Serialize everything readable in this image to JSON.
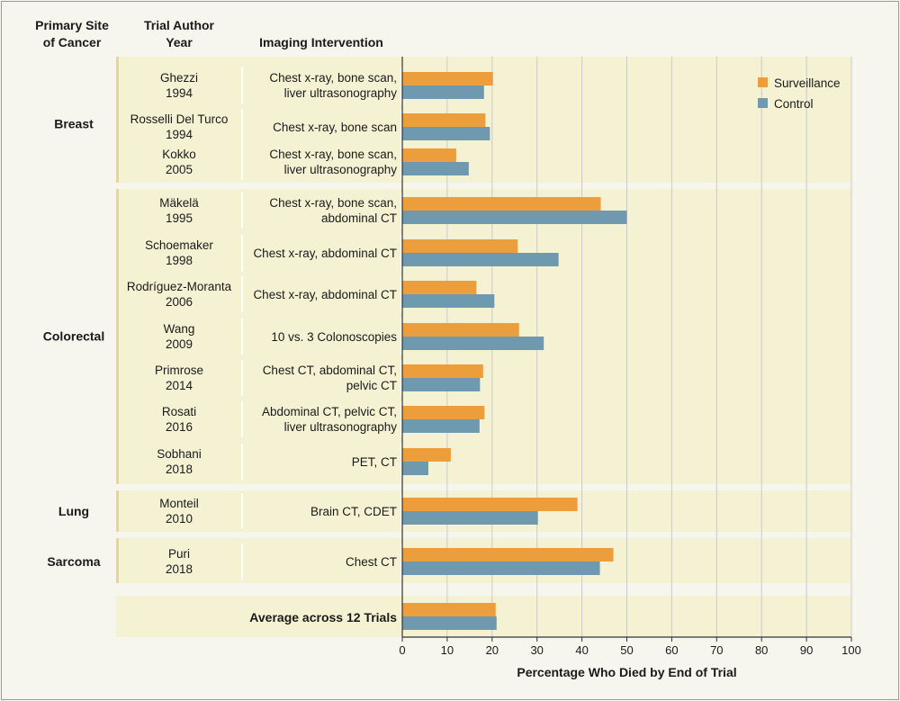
{
  "headers": {
    "site": [
      "Primary Site",
      "of Cancer"
    ],
    "author": [
      "Trial Author",
      "Year"
    ],
    "imaging": "Imaging Intervention"
  },
  "colors": {
    "surveillance": "#ed9e3c",
    "control": "#6f99ae",
    "band": "#f5f2d4",
    "band_divider": "#e3d98f",
    "cell_separator": "#ffffff",
    "grid": "#c9c9c9"
  },
  "groups": [
    {
      "site": "Breast",
      "trials": [
        0,
        1,
        2
      ]
    },
    {
      "site": "Colorectal",
      "trials": [
        3,
        4,
        5,
        6,
        7,
        8,
        9
      ]
    },
    {
      "site": "Lung",
      "trials": [
        10
      ]
    },
    {
      "site": "Sarcoma",
      "trials": [
        11
      ]
    }
  ],
  "average_label": "Average across 12 Trials",
  "chart_data": {
    "type": "bar",
    "orientation": "horizontal",
    "title": "",
    "xlabel": "Percentage Who Died by End of Trial",
    "xlim": [
      0,
      100
    ],
    "xticks": [
      0,
      10,
      20,
      30,
      40,
      50,
      60,
      70,
      80,
      90,
      100
    ],
    "legend": {
      "placement": "top-right",
      "entries": [
        "Surveillance",
        "Control"
      ]
    },
    "categories": [
      {
        "author": "Ghezzi",
        "year": "1994",
        "imaging": [
          "Chest x-ray, bone scan,",
          "liver ultrasonography"
        ]
      },
      {
        "author": "Rosselli Del Turco",
        "year": "1994",
        "imaging": [
          "Chest x-ray, bone scan"
        ]
      },
      {
        "author": "Kokko",
        "year": "2005",
        "imaging": [
          "Chest x-ray, bone scan,",
          "liver ultrasonography"
        ]
      },
      {
        "author": "Mäkelä",
        "year": "1995",
        "imaging": [
          "Chest x-ray, bone scan,",
          "abdominal CT"
        ]
      },
      {
        "author": "Schoemaker",
        "year": "1998",
        "imaging": [
          "Chest x-ray, abdominal CT"
        ]
      },
      {
        "author": "Rodríguez-Moranta",
        "year": "2006",
        "imaging": [
          "Chest x-ray, abdominal CT"
        ]
      },
      {
        "author": "Wang",
        "year": "2009",
        "imaging": [
          "10 vs. 3 Colonoscopies"
        ]
      },
      {
        "author": "Primrose",
        "year": "2014",
        "imaging": [
          "Chest CT, abdominal CT,",
          "pelvic CT"
        ]
      },
      {
        "author": "Rosati",
        "year": "2016",
        "imaging": [
          "Abdominal CT, pelvic CT,",
          "liver ultrasonography"
        ]
      },
      {
        "author": "Sobhani",
        "year": "2018",
        "imaging": [
          "PET, CT"
        ]
      },
      {
        "author": "Monteil",
        "year": "2010",
        "imaging": [
          "Brain CT, CDET"
        ]
      },
      {
        "author": "Puri",
        "year": "2018",
        "imaging": [
          "Chest CT"
        ]
      }
    ],
    "series": [
      {
        "name": "Surveillance",
        "values": [
          20.2,
          18.5,
          12.0,
          44.2,
          25.7,
          16.5,
          26.0,
          18.0,
          18.3,
          10.8,
          39.0,
          47.0
        ],
        "average": 20.8
      },
      {
        "name": "Control",
        "values": [
          18.2,
          19.5,
          14.8,
          50.0,
          34.8,
          20.5,
          31.5,
          17.3,
          17.2,
          5.8,
          30.2,
          44.0
        ],
        "average": 21.0
      }
    ]
  }
}
